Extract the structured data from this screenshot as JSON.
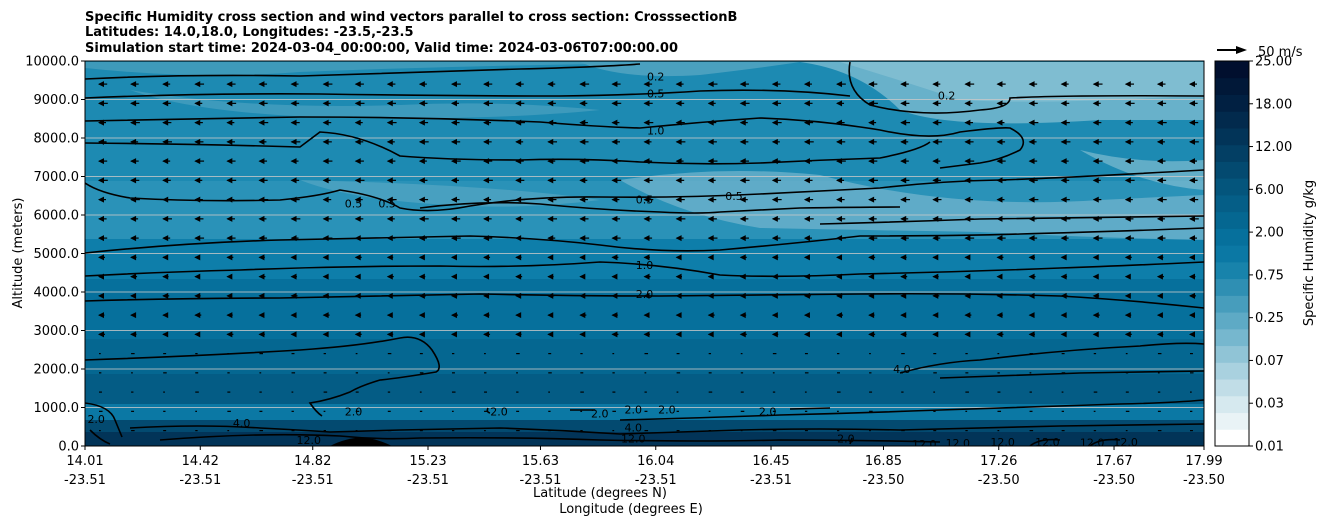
{
  "chart_data": {
    "type": "heatmap",
    "title_lines": [
      "Specific Humidity cross section and wind vectors parallel to cross section: CrosssectionB",
      "Latitudes: 14.0,18.0, Longitudes: -23.5,-23.5",
      "Simulation start time: 2024-03-04_00:00:00, Valid time: 2024-03-06T07:00:00.00"
    ],
    "xlabel_lines": [
      "Latitude (degrees N)",
      "Longitude (degrees E)"
    ],
    "ylabel": "Altitude (meters)",
    "ylim": [
      0,
      10000
    ],
    "yticks": [
      "0.0",
      "1000.0",
      "2000.0",
      "3000.0",
      "4000.0",
      "5000.0",
      "6000.0",
      "7000.0",
      "8000.0",
      "9000.0",
      "10000.0"
    ],
    "xticks": [
      {
        "lat": "14.01",
        "lon": "-23.51"
      },
      {
        "lat": "14.42",
        "lon": "-23.51"
      },
      {
        "lat": "14.82",
        "lon": "-23.51"
      },
      {
        "lat": "15.23",
        "lon": "-23.51"
      },
      {
        "lat": "15.63",
        "lon": "-23.51"
      },
      {
        "lat": "16.04",
        "lon": "-23.51"
      },
      {
        "lat": "16.45",
        "lon": "-23.51"
      },
      {
        "lat": "16.85",
        "lon": "-23.50"
      },
      {
        "lat": "17.26",
        "lon": "-23.50"
      },
      {
        "lat": "17.67",
        "lon": "-23.50"
      },
      {
        "lat": "17.99",
        "lon": "-23.50"
      }
    ],
    "grid": "horizontal",
    "colorbar": {
      "label": "Specific Humidity g/kg",
      "ticks": [
        "0.01",
        "0.03",
        "0.07",
        "0.25",
        "0.75",
        "2.00",
        "6.00",
        "12.00",
        "18.00",
        "25.00"
      ],
      "colors": [
        "#ffffff",
        "#e9f3f6",
        "#d6e9ef",
        "#c1dde7",
        "#a9d1df",
        "#90c4d6",
        "#76b7ce",
        "#5eaac5",
        "#479dbc",
        "#2f8fb3",
        "#1883ab",
        "#0b78a4",
        "#06709c",
        "#056791",
        "#055e87",
        "#04557c",
        "#034a70",
        "#033f64",
        "#023458",
        "#022a4d",
        "#012042",
        "#011838",
        "#010f2e"
      ]
    },
    "legend": {
      "quiver_key": "50 m/s",
      "placement": "top-right"
    },
    "contour_levels_labeled": [
      "0.2",
      "0.5",
      "1.0",
      "2.0",
      "4.0",
      "12.0"
    ],
    "contour_labels": [
      {
        "text": "0.2",
        "x": 0.51,
        "y": 9600
      },
      {
        "text": "0.5",
        "x": 0.51,
        "y": 9150
      },
      {
        "text": "1.0",
        "x": 0.51,
        "y": 8200
      },
      {
        "text": "0.2",
        "x": 0.77,
        "y": 9100
      },
      {
        "text": "0.5",
        "x": 0.24,
        "y": 6300
      },
      {
        "text": "0.5",
        "x": 0.27,
        "y": 6300
      },
      {
        "text": "0.5",
        "x": 0.5,
        "y": 6400
      },
      {
        "text": "0.5",
        "x": 0.58,
        "y": 6500
      },
      {
        "text": "1.0",
        "x": 0.5,
        "y": 4700
      },
      {
        "text": "2.0",
        "x": 0.5,
        "y": 3950
      },
      {
        "text": "4.0",
        "x": 0.73,
        "y": 2000
      },
      {
        "text": "2.0",
        "x": 0.01,
        "y": 700
      },
      {
        "text": "4.0",
        "x": 0.14,
        "y": 600
      },
      {
        "text": "12.0",
        "x": 0.2,
        "y": 150
      },
      {
        "text": "2.0",
        "x": 0.24,
        "y": 900
      },
      {
        "text": "2.0",
        "x": 0.37,
        "y": 900
      },
      {
        "text": "2.0",
        "x": 0.46,
        "y": 850
      },
      {
        "text": "2.0",
        "x": 0.49,
        "y": 950
      },
      {
        "text": "2.0",
        "x": 0.52,
        "y": 950
      },
      {
        "text": "2.0",
        "x": 0.61,
        "y": 900
      },
      {
        "text": "4.0",
        "x": 0.49,
        "y": 480
      },
      {
        "text": "12.0",
        "x": 0.49,
        "y": 200
      },
      {
        "text": "2.0",
        "x": 0.68,
        "y": 200
      },
      {
        "text": "12.0",
        "x": 0.75,
        "y": 50
      },
      {
        "text": "12.0",
        "x": 0.78,
        "y": 80
      },
      {
        "text": "12.0",
        "x": 0.82,
        "y": 100
      },
      {
        "text": "12.0",
        "x": 0.86,
        "y": 110
      },
      {
        "text": "12.0",
        "x": 0.9,
        "y": 90
      },
      {
        "text": "12.0",
        "x": 0.93,
        "y": 100
      }
    ]
  }
}
